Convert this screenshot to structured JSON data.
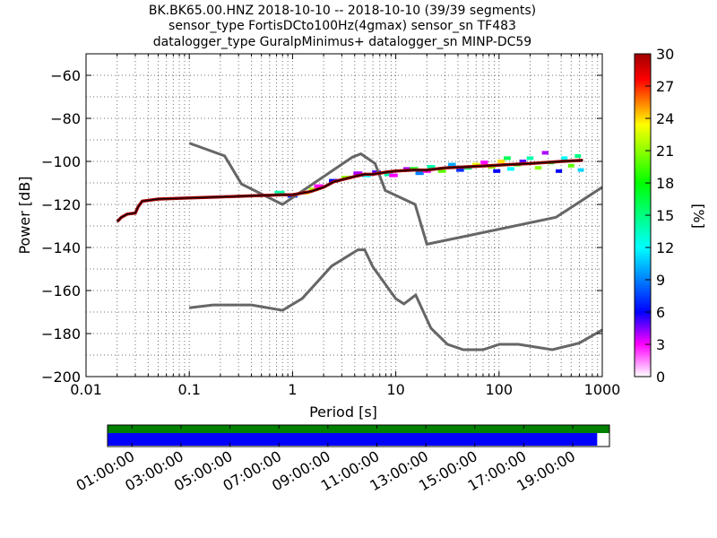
{
  "chart_data": [
    {
      "type": "heatmap",
      "title_lines": [
        "BK.BK65.00.HNZ   2018-10-10 -- 2018-10-10  (39/39 segments)",
        "sensor_type FortisDCto100Hz(4gmax) sensor_sn TF483",
        "datalogger_type GuralpMinimus+ datalogger_sn MINP-DC59"
      ],
      "xlabel": "Period [s]",
      "ylabel": "Power [dB]",
      "xscale": "log",
      "xlim": [
        0.01,
        1000
      ],
      "ylim": [
        -200,
        -50
      ],
      "x_ticks": [
        {
          "value": 0.01,
          "label": "0.01"
        },
        {
          "value": 0.1,
          "label": "0.1"
        },
        {
          "value": 1,
          "label": "1"
        },
        {
          "value": 10,
          "label": "10"
        },
        {
          "value": 100,
          "label": "100"
        },
        {
          "value": 1000,
          "label": "1000"
        }
      ],
      "y_ticks": [
        {
          "value": -60,
          "label": "−60"
        },
        {
          "value": -80,
          "label": "−80"
        },
        {
          "value": -100,
          "label": "−100"
        },
        {
          "value": -120,
          "label": "−120"
        },
        {
          "value": -140,
          "label": "−140"
        },
        {
          "value": -160,
          "label": "−160"
        },
        {
          "value": -180,
          "label": "−180"
        },
        {
          "value": -200,
          "label": "−200"
        }
      ],
      "grid": "dotted",
      "colorbar": {
        "label": "[%]",
        "range": [
          0,
          30
        ],
        "ticks": [
          "0",
          "3",
          "6",
          "9",
          "12",
          "15",
          "18",
          "21",
          "24",
          "27",
          "30"
        ],
        "colors": [
          "#ffffff",
          "#ff00ff",
          "#0000ff",
          "#00ffff",
          "#00ff00",
          "#ffff00",
          "#ff0000",
          "#a00000"
        ]
      },
      "psd_line": {
        "periods": [
          0.02,
          0.022,
          0.025,
          0.03,
          0.032,
          0.035,
          0.05,
          0.1,
          0.2,
          0.4,
          0.8,
          1.0,
          1.5,
          2.0,
          2.5,
          3,
          4,
          5,
          6,
          7,
          8,
          10,
          15,
          20,
          30,
          50,
          80,
          120,
          200,
          400,
          650
        ],
        "power": [
          -128,
          -126,
          -124.5,
          -124,
          -121,
          -118.5,
          -117.5,
          -117,
          -116.5,
          -116,
          -115.5,
          -115.5,
          -114,
          -112,
          -109.5,
          -108.5,
          -107,
          -106,
          -106,
          -105.5,
          -105,
          -104.5,
          -104,
          -104,
          -103,
          -102.5,
          -102,
          -101.5,
          -101,
          -100,
          -99.5
        ]
      },
      "density_cells": [
        {
          "period": 0.75,
          "power": -114.5,
          "value": 14
        },
        {
          "period": 1.0,
          "power": -116,
          "value": 7
        },
        {
          "period": 1.3,
          "power": -114.5,
          "value": 24
        },
        {
          "period": 1.6,
          "power": -113,
          "value": 22
        },
        {
          "period": 1.8,
          "power": -111.5,
          "value": 3
        },
        {
          "period": 2.5,
          "power": -109,
          "value": 6
        },
        {
          "period": 3.3,
          "power": -107.5,
          "value": 21
        },
        {
          "period": 4.3,
          "power": -105.5,
          "value": 4
        },
        {
          "period": 5.2,
          "power": -106.5,
          "value": 12
        },
        {
          "period": 6.5,
          "power": -105,
          "value": 5
        },
        {
          "period": 8.5,
          "power": -106,
          "value": 14
        },
        {
          "period": 9.5,
          "power": -106.5,
          "value": 3
        },
        {
          "period": 13,
          "power": -103.5,
          "value": 4
        },
        {
          "period": 15,
          "power": -103.5,
          "value": 18
        },
        {
          "period": 17,
          "power": -105.5,
          "value": 9
        },
        {
          "period": 20,
          "power": -104.5,
          "value": 3
        },
        {
          "period": 22,
          "power": -102.5,
          "value": 14
        },
        {
          "period": 28,
          "power": -104.5,
          "value": 20
        },
        {
          "period": 35,
          "power": -101.5,
          "value": 10
        },
        {
          "period": 42,
          "power": -104,
          "value": 7
        },
        {
          "period": 50,
          "power": -103,
          "value": 15
        },
        {
          "period": 60,
          "power": -101.5,
          "value": 23
        },
        {
          "period": 72,
          "power": -100.5,
          "value": 3
        },
        {
          "period": 85,
          "power": -102.5,
          "value": 21
        },
        {
          "period": 95,
          "power": -104.5,
          "value": 6
        },
        {
          "period": 105,
          "power": -100,
          "value": 24
        },
        {
          "period": 120,
          "power": -98.5,
          "value": 16
        },
        {
          "period": 130,
          "power": -103.5,
          "value": 12
        },
        {
          "period": 150,
          "power": -101.5,
          "value": 19
        },
        {
          "period": 170,
          "power": -100,
          "value": 5
        },
        {
          "period": 200,
          "power": -98.5,
          "value": 14
        },
        {
          "period": 240,
          "power": -103,
          "value": 21
        },
        {
          "period": 280,
          "power": -96,
          "value": 4
        },
        {
          "period": 320,
          "power": -100.5,
          "value": 17
        },
        {
          "period": 380,
          "power": -104.5,
          "value": 6
        },
        {
          "period": 430,
          "power": -98.5,
          "value": 12
        },
        {
          "period": 500,
          "power": -102,
          "value": 20
        },
        {
          "period": 580,
          "power": -97.5,
          "value": 15
        },
        {
          "period": 620,
          "power": -104,
          "value": 11
        }
      ],
      "nhnm": {
        "periods": [
          0.1,
          0.22,
          0.32,
          0.8,
          3.8,
          4.6,
          6.3,
          7.9,
          15.4,
          20,
          354.8,
          1000
        ],
        "power": [
          -91.5,
          -97.4,
          -110.5,
          -120,
          -98,
          -96.5,
          -101,
          -113.5,
          -120,
          -138.5,
          -126,
          -112
        ]
      },
      "nlnm": {
        "periods": [
          0.1,
          0.17,
          0.4,
          0.8,
          1.24,
          2.4,
          4.3,
          5,
          6,
          10,
          12,
          15.6,
          21.9,
          31.6,
          45,
          70,
          101,
          154,
          328,
          600,
          1000
        ],
        "power": [
          -168,
          -166.7,
          -166.7,
          -169.2,
          -163.7,
          -148.6,
          -141.1,
          -141.1,
          -149,
          -163.8,
          -166.2,
          -162.1,
          -177.5,
          -185,
          -187.5,
          -187.5,
          -185,
          -185,
          -187.5,
          -184.4,
          -178.3
        ]
      }
    },
    {
      "type": "timeline",
      "x_tick_labels": [
        "01:00:00",
        "03:00:00",
        "05:00:00",
        "07:00:00",
        "09:00:00",
        "11:00:00",
        "13:00:00",
        "15:00:00",
        "17:00:00",
        "19:00:00"
      ],
      "x_ticks_hours": [
        1,
        3,
        5,
        7,
        9,
        11,
        13,
        15,
        17,
        19
      ],
      "range_hours": [
        0,
        20.5
      ],
      "data_coverage": {
        "start_hour": 0,
        "end_hour": 20.5,
        "color": "#008000"
      },
      "psd_coverage": {
        "start_hour": 0,
        "end_hour": 20.0,
        "color": "#0000ff"
      }
    }
  ]
}
